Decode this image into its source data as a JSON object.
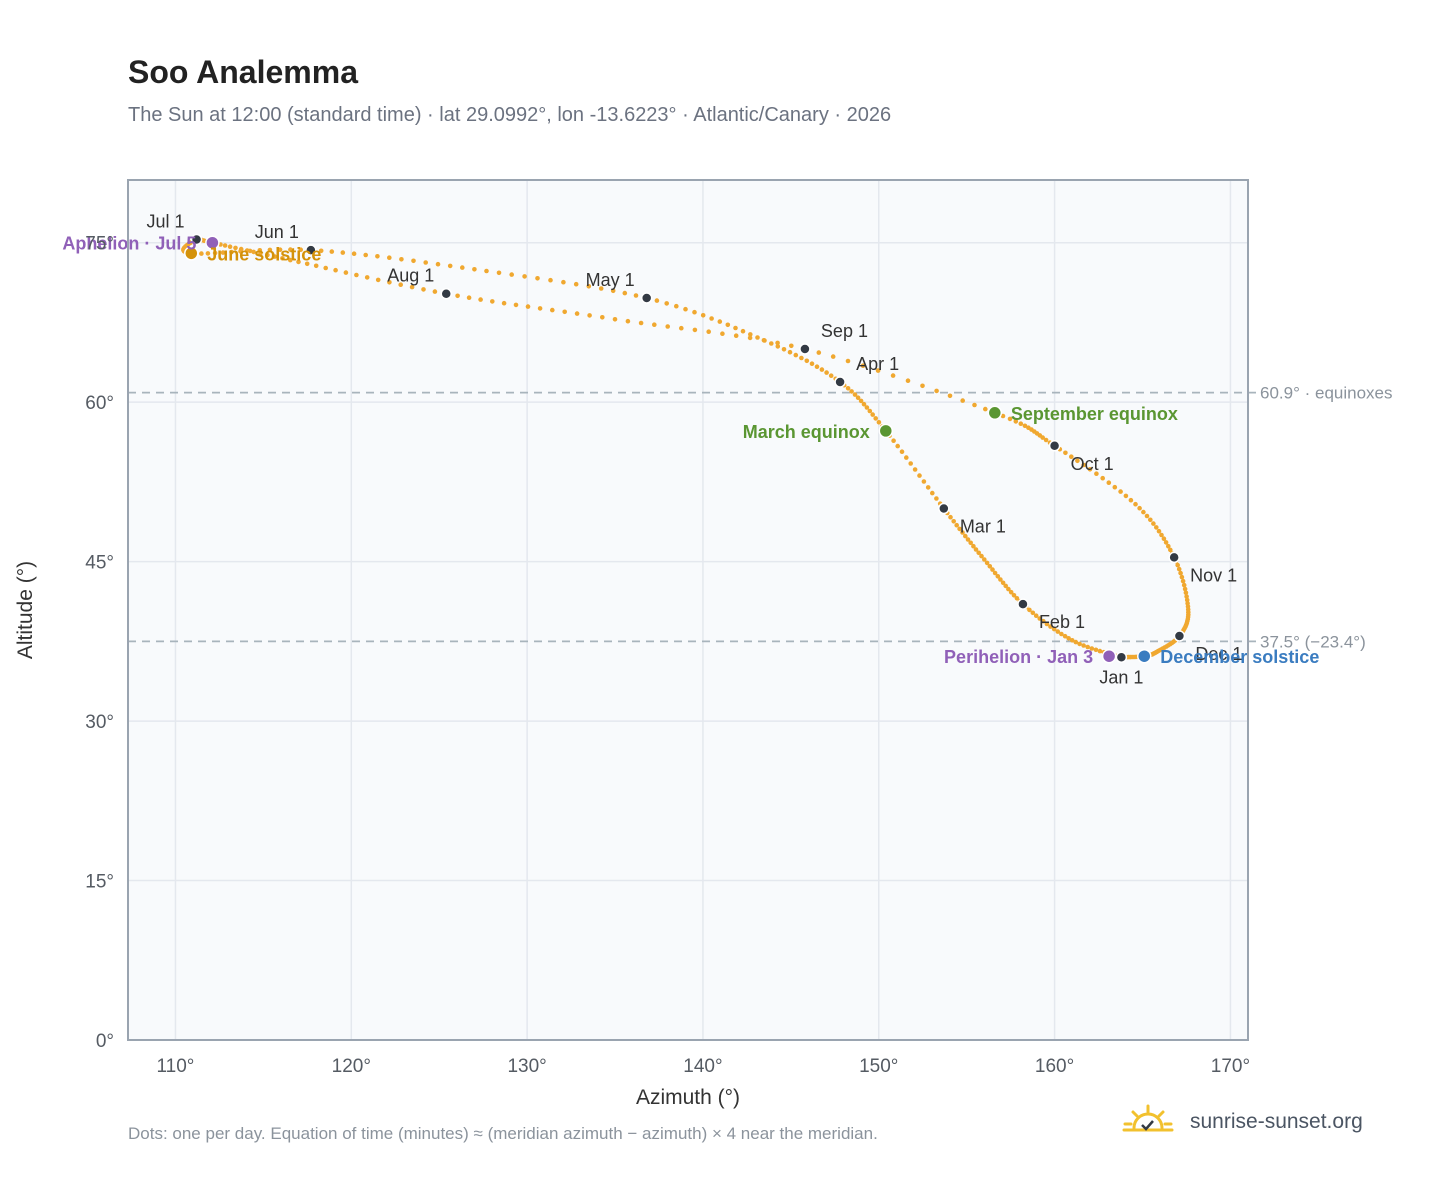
{
  "title": "Soo Analemma",
  "subtitle": "The Sun at 12:00 (standard time) · lat 29.0992°, lon -13.6223° · Atlantic/Canary · 2026",
  "footnote": "Dots: one per day. Equation of time (minutes) ≈ (meridian azimuth − azimuth) × 4 near the meridian.",
  "brand": {
    "text": "sunrise-sunset.org",
    "icon": "sun-check-icon"
  },
  "colors": {
    "curve": "#f0a830",
    "month_dot": "#333a44",
    "equinox": "#5a9632",
    "june_solstice": "#d4920a",
    "december_solstice": "#3a7cc0",
    "apsis": "#9060b8",
    "reference_line": "#a8b4bc",
    "grid": "#e4e8ee",
    "plot_bg": "#f8fafc",
    "frame": "#9aa4b0"
  },
  "chart_data": {
    "type": "scatter",
    "title": "Soo Analemma",
    "xlabel": "Azimuth (°)",
    "ylabel": "Altitude (°)",
    "xlim": [
      107.3,
      171.0
    ],
    "ylim": [
      0,
      80.9
    ],
    "x_ticks": [
      110,
      120,
      130,
      140,
      150,
      160,
      170
    ],
    "y_ticks": [
      0,
      15,
      30,
      45,
      60,
      75
    ],
    "x_tick_labels": [
      "110°",
      "120°",
      "130°",
      "140°",
      "150°",
      "160°",
      "170°"
    ],
    "y_tick_labels": [
      "0°",
      "15°",
      "30°",
      "45°",
      "60°",
      "75°"
    ],
    "grid": true,
    "series": [
      {
        "style": "daily-dots-path",
        "points": [
          {
            "date": "Jan 1",
            "x": 163.8,
            "y": 36.0
          },
          {
            "date": "Jan 15",
            "x": 161.0,
            "y": 37.6
          },
          {
            "date": "Feb 1",
            "x": 158.2,
            "y": 41.0
          },
          {
            "date": "Feb 15",
            "x": 156.0,
            "y": 45.2
          },
          {
            "date": "Mar 1",
            "x": 153.7,
            "y": 50.0
          },
          {
            "date": "Mar 20",
            "x": 150.4,
            "y": 57.3
          },
          {
            "date": "Apr 1",
            "x": 147.8,
            "y": 61.9
          },
          {
            "date": "Apr 15",
            "x": 143.5,
            "y": 65.8
          },
          {
            "date": "May 1",
            "x": 136.8,
            "y": 69.8
          },
          {
            "date": "May 15",
            "x": 127.0,
            "y": 72.5
          },
          {
            "date": "Jun 1",
            "x": 117.7,
            "y": 74.3
          },
          {
            "date": "Jun 21",
            "x": 110.9,
            "y": 74.0
          },
          {
            "date": "Jul 1",
            "x": 111.2,
            "y": 75.3
          },
          {
            "date": "Jul 5",
            "x": 112.1,
            "y": 75.0
          },
          {
            "date": "Jul 15",
            "x": 117.0,
            "y": 73.2
          },
          {
            "date": "Aug 1",
            "x": 125.4,
            "y": 70.2
          },
          {
            "date": "Aug 15",
            "x": 135.0,
            "y": 67.8
          },
          {
            "date": "Sep 1",
            "x": 145.8,
            "y": 65.0
          },
          {
            "date": "Sep 23",
            "x": 156.6,
            "y": 59.0
          },
          {
            "date": "Oct 1",
            "x": 160.0,
            "y": 55.9
          },
          {
            "date": "Oct 15",
            "x": 164.6,
            "y": 50.4
          },
          {
            "date": "Nov 1",
            "x": 166.8,
            "y": 45.4
          },
          {
            "date": "Nov 15",
            "x": 167.6,
            "y": 40.5
          },
          {
            "date": "Dec 1",
            "x": 167.1,
            "y": 38.0
          },
          {
            "date": "Dec 15",
            "x": 165.8,
            "y": 36.5
          },
          {
            "date": "Dec 21",
            "x": 165.1,
            "y": 36.1
          },
          {
            "date": "Jan 1b",
            "x": 163.8,
            "y": 36.0
          }
        ]
      }
    ],
    "month_markers": [
      {
        "label": "Jan 1",
        "x": 163.8,
        "y": 36.0,
        "pos": "below"
      },
      {
        "label": "Feb 1",
        "x": 158.2,
        "y": 41.0,
        "pos": "below-right"
      },
      {
        "label": "Mar 1",
        "x": 153.7,
        "y": 50.0,
        "pos": "below-right"
      },
      {
        "label": "Apr 1",
        "x": 147.8,
        "y": 61.9,
        "pos": "above-right"
      },
      {
        "label": "May 1",
        "x": 136.8,
        "y": 69.8,
        "pos": "above-left"
      },
      {
        "label": "Jun 1",
        "x": 117.7,
        "y": 74.3,
        "pos": "above-left"
      },
      {
        "label": "Jul 1",
        "x": 111.2,
        "y": 75.3,
        "pos": "above-left"
      },
      {
        "label": "Aug 1",
        "x": 125.4,
        "y": 70.2,
        "pos": "above-left"
      },
      {
        "label": "Sep 1",
        "x": 145.8,
        "y": 65.0,
        "pos": "above-right"
      },
      {
        "label": "Oct 1",
        "x": 160.0,
        "y": 55.9,
        "pos": "below-right"
      },
      {
        "label": "Nov 1",
        "x": 166.8,
        "y": 45.4,
        "pos": "below-right"
      },
      {
        "label": "Dec 1",
        "x": 167.1,
        "y": 38.0,
        "pos": "below-right"
      }
    ],
    "events": [
      {
        "label": "March equinox",
        "x": 150.4,
        "y": 57.3,
        "kind": "equinox",
        "side": "left"
      },
      {
        "label": "September equinox",
        "x": 156.6,
        "y": 59.0,
        "kind": "equinox",
        "side": "right"
      },
      {
        "label": "June solstice",
        "x": 110.9,
        "y": 74.0,
        "kind": "june_solstice",
        "side": "right"
      },
      {
        "label": "December solstice",
        "x": 165.1,
        "y": 36.1,
        "kind": "december_solstice",
        "side": "right"
      },
      {
        "label": "Aphelion · Jul 5",
        "x": 112.1,
        "y": 75.0,
        "kind": "apsis",
        "side": "left"
      },
      {
        "label": "Perihelion · Jan 3",
        "x": 163.1,
        "y": 36.1,
        "kind": "apsis",
        "side": "left"
      }
    ],
    "reference_lines": [
      {
        "y": 60.9,
        "label": "60.9° · equinoxes"
      },
      {
        "y": 37.5,
        "label": "37.5° (−23.4°)"
      }
    ]
  }
}
